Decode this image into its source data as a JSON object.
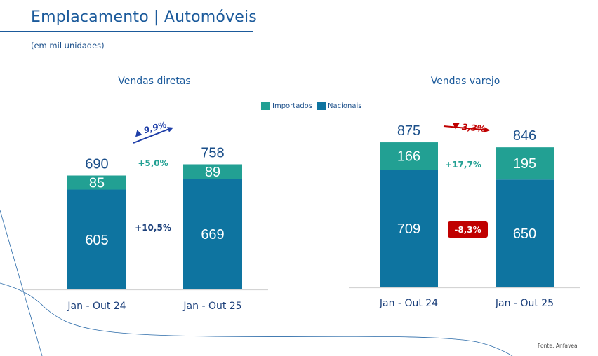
{
  "header": {
    "title": "Emplacamento | Automóveis",
    "subtitle": "(em mil unidades)"
  },
  "legend": {
    "items": [
      {
        "label": "Importados",
        "color": "#22a093"
      },
      {
        "label": "Nacionais",
        "color": "#0e74a0"
      }
    ]
  },
  "footer": {
    "source": "Fonte: Anfavea"
  },
  "colors": {
    "importados": "#22a093",
    "nacionais": "#0e74a0",
    "total_label": "#1b4f8a",
    "positive_growth": "#22a093",
    "navy_growth": "#1b3f7a",
    "up_arrow": "#1e3ea8",
    "down_arrow": "#c00000"
  },
  "chart_data": [
    {
      "type": "bar",
      "stacked": true,
      "title": "Vendas diretas",
      "categories": [
        "Jan - Out 24",
        "Jan - Out 25"
      ],
      "series": [
        {
          "name": "Nacionais",
          "values": [
            605,
            669
          ]
        },
        {
          "name": "Importados",
          "values": [
            85,
            89
          ]
        }
      ],
      "totals": [
        690,
        758
      ],
      "total_change": {
        "label": "9,9%",
        "direction": "up"
      },
      "importados_change": "+5,0%",
      "nacionais_change": "+10,5%",
      "ylim": [
        0,
        900
      ],
      "grid": false
    },
    {
      "type": "bar",
      "stacked": true,
      "title": "Vendas varejo",
      "categories": [
        "Jan - Out 24",
        "Jan - Out 25"
      ],
      "series": [
        {
          "name": "Nacionais",
          "values": [
            709,
            650
          ]
        },
        {
          "name": "Importados",
          "values": [
            166,
            195
          ]
        }
      ],
      "totals": [
        875,
        846
      ],
      "total_change": {
        "label": "3,3%",
        "direction": "down"
      },
      "importados_change": "+17,7%",
      "nacionais_change": "-8,3%",
      "ylim": [
        0,
        900
      ],
      "grid": false
    }
  ]
}
